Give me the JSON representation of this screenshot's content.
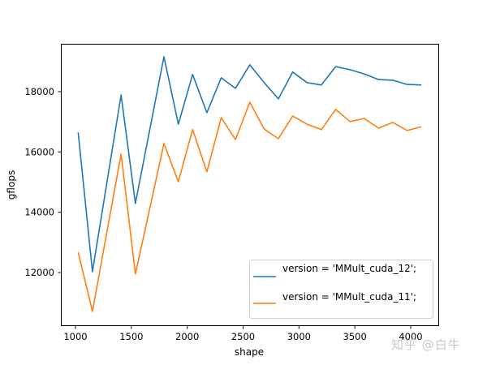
{
  "chart_data": {
    "type": "line",
    "title": "",
    "xlabel": "shape",
    "ylabel": "gflops",
    "xlim": [
      870,
      4250
    ],
    "ylim": [
      10400,
      19450
    ],
    "xticks": [
      1000,
      1500,
      2000,
      2500,
      3000,
      3500,
      4000
    ],
    "yticks": [
      12000,
      14000,
      16000,
      18000
    ],
    "grid": false,
    "legend_position": "lower right",
    "x": [
      1024,
      1152,
      1408,
      1536,
      1792,
      1920,
      2048,
      2176,
      2304,
      2432,
      2560,
      2688,
      2816,
      2944,
      3072,
      3200,
      3328,
      3456,
      3584,
      3712,
      3840,
      3968,
      4096
    ],
    "series": [
      {
        "name": "version = 'MMult_cuda_12';",
        "color": "#1f77b4",
        "values": [
          16650,
          12030,
          17890,
          14290,
          19160,
          16920,
          18570,
          17300,
          18460,
          18110,
          18890,
          18300,
          17760,
          18650,
          18300,
          18220,
          18830,
          18730,
          18590,
          18400,
          18380,
          18240,
          18220
        ]
      },
      {
        "name": "version = 'MMult_cuda_11';",
        "color": "#ff7f0e",
        "values": [
          12670,
          10710,
          15930,
          11950,
          16280,
          15010,
          16740,
          15340,
          17140,
          16410,
          17650,
          16760,
          16440,
          17190,
          16920,
          16740,
          17410,
          17010,
          17110,
          16790,
          16980,
          16710,
          16840
        ]
      }
    ]
  },
  "watermark": "知乎 @白牛"
}
